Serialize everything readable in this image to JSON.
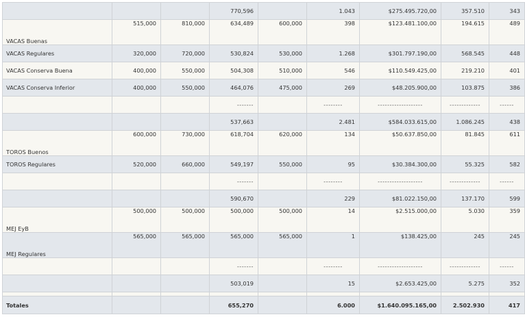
{
  "rows": [
    {
      "style": "shade",
      "h": 25,
      "label": "",
      "c1": "",
      "c2": "",
      "c3": "770,596",
      "c4": "",
      "c5": "1.043",
      "c6": "$275.495.720,00",
      "c7": "357.510",
      "c8": "343"
    },
    {
      "style": "plain",
      "h": 37,
      "label": "VACAS Buenas",
      "label_pos": "bottom",
      "c1": "515,000",
      "c2": "810,000",
      "c3": "634,489",
      "c4": "600,000",
      "c5": "398",
      "c6": "$123.481.100,00",
      "c7": "194.615",
      "c8": "489",
      "val_pos": "top"
    },
    {
      "style": "shade",
      "h": 25,
      "label": "VACAS Regulares",
      "c1": "320,000",
      "c2": "720,000",
      "c3": "530,824",
      "c4": "530,000",
      "c5": "1.268",
      "c6": "$301.797.190,00",
      "c7": "568.545",
      "c8": "448"
    },
    {
      "style": "plain",
      "h": 25,
      "label": "VACAS Conserva Buena",
      "c1": "400,000",
      "c2": "550,000",
      "c3": "504,308",
      "c4": "510,000",
      "c5": "546",
      "c6": "$110.549.425,00",
      "c7": "219.210",
      "c8": "401"
    },
    {
      "style": "shade",
      "h": 25,
      "label": "VACAS Conserva Inferior",
      "c1": "400,000",
      "c2": "550,000",
      "c3": "464,076",
      "c4": "475,000",
      "c5": "269",
      "c6": "$48.205.900,00",
      "c7": "103.875",
      "c8": "386"
    },
    {
      "style": "plain",
      "h": 25,
      "dash": true,
      "label": "",
      "c1": "",
      "c2": "",
      "c3": "-------",
      "c4": "",
      "c5": "--------",
      "c6": "-------------------",
      "c7": "-------------",
      "c8": "------"
    },
    {
      "style": "shade",
      "h": 25,
      "label": "",
      "c1": "",
      "c2": "",
      "c3": "537,663",
      "c4": "",
      "c5": "2.481",
      "c6": "$584.033.615,00",
      "c7": "1.086.245",
      "c8": "438"
    },
    {
      "style": "plain",
      "h": 37,
      "label": "TOROS Buenos",
      "label_pos": "bottom",
      "c1": "600,000",
      "c2": "730,000",
      "c3": "618,704",
      "c4": "620,000",
      "c5": "134",
      "c6": "$50.637.850,00",
      "c7": "81.845",
      "c8": "611",
      "val_pos": "top"
    },
    {
      "style": "shade",
      "h": 25,
      "label": "TOROS Regulares",
      "c1": "520,000",
      "c2": "660,000",
      "c3": "549,197",
      "c4": "550,000",
      "c5": "95",
      "c6": "$30.384.300,00",
      "c7": "55.325",
      "c8": "582"
    },
    {
      "style": "plain",
      "h": 25,
      "dash": true,
      "label": "",
      "c1": "",
      "c2": "",
      "c3": "-------",
      "c4": "",
      "c5": "--------",
      "c6": "-------------------",
      "c7": "-------------",
      "c8": "------"
    },
    {
      "style": "shade",
      "h": 25,
      "label": "",
      "c1": "",
      "c2": "",
      "c3": "590,670",
      "c4": "",
      "c5": "229",
      "c6": "$81.022.150,00",
      "c7": "137.170",
      "c8": "599"
    },
    {
      "style": "plain",
      "h": 37,
      "label": "MEJ EyB",
      "label_pos": "bottom",
      "c1": "500,000",
      "c2": "500,000",
      "c3": "500,000",
      "c4": "500,000",
      "c5": "14",
      "c6": "$2.515.000,00",
      "c7": "5.030",
      "c8": "359",
      "val_pos": "top"
    },
    {
      "style": "shade",
      "h": 37,
      "label": "MEJ Regulares",
      "label_pos": "bottom",
      "c1": "565,000",
      "c2": "565,000",
      "c3": "565,000",
      "c4": "565,000",
      "c5": "1",
      "c6": "$138.425,00",
      "c7": "245",
      "c8": "245",
      "val_pos": "top"
    },
    {
      "style": "plain",
      "h": 25,
      "dash": true,
      "label": "",
      "c1": "",
      "c2": "",
      "c3": "-------",
      "c4": "",
      "c5": "--------",
      "c6": "-------------------",
      "c7": "-------------",
      "c8": "------"
    },
    {
      "style": "shade",
      "h": 25,
      "label": "",
      "c1": "",
      "c2": "",
      "c3": "503,019",
      "c4": "",
      "c5": "15",
      "c6": "$2.653.425,00",
      "c7": "5.275",
      "c8": "352"
    },
    {
      "style": "plain",
      "h": 6,
      "spacer": true,
      "label": "",
      "c1": "",
      "c2": "",
      "c3": "",
      "c4": "",
      "c5": "",
      "c6": "",
      "c7": "",
      "c8": ""
    },
    {
      "style": "total",
      "h": 26,
      "label": "Totales",
      "c1": "",
      "c2": "",
      "c3": "655,270",
      "c4": "",
      "c5": "6.000",
      "c6": "$1.640.095.165,00",
      "c7": "2.502.930",
      "c8": "417"
    }
  ]
}
